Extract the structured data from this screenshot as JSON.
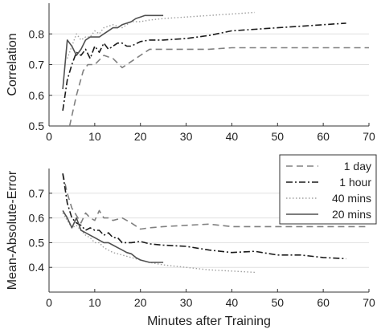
{
  "chart_data": [
    {
      "type": "line",
      "ylabel": "Correlation",
      "xlim": [
        0,
        70
      ],
      "ylim": [
        0.5,
        0.9
      ],
      "xticks": [
        0,
        10,
        20,
        30,
        40,
        50,
        60,
        70
      ],
      "yticks": [
        0.5,
        0.6,
        0.7,
        0.8
      ],
      "xtick_labels": [
        "0",
        "10",
        "20",
        "30",
        "40",
        "50",
        "60",
        "70"
      ],
      "ytick_labels": [
        "0.5",
        "0.6",
        "0.7",
        "0.8"
      ],
      "grid": "horizontal",
      "series": [
        {
          "name": "1 day",
          "style": "dashed",
          "color": "#808080",
          "x": [
            4.5,
            6,
            7.5,
            8.5,
            10,
            12,
            14,
            16,
            18,
            20,
            22,
            25,
            30,
            35,
            40,
            45,
            50,
            55,
            60,
            65,
            70
          ],
          "y": [
            0.5,
            0.6,
            0.68,
            0.7,
            0.7,
            0.73,
            0.72,
            0.69,
            0.71,
            0.73,
            0.75,
            0.75,
            0.75,
            0.75,
            0.755,
            0.755,
            0.755,
            0.755,
            0.755,
            0.755,
            0.755
          ]
        },
        {
          "name": "1 hour",
          "style": "dashdot",
          "color": "#1a1a1a",
          "x": [
            3,
            4,
            5,
            6,
            7,
            8,
            9,
            10,
            11,
            12,
            13,
            14,
            15,
            16,
            17,
            18,
            20,
            22,
            25,
            30,
            35,
            40,
            45,
            50,
            55,
            60,
            65
          ],
          "y": [
            0.55,
            0.65,
            0.7,
            0.74,
            0.73,
            0.75,
            0.72,
            0.76,
            0.74,
            0.77,
            0.75,
            0.76,
            0.77,
            0.77,
            0.76,
            0.76,
            0.775,
            0.78,
            0.78,
            0.785,
            0.795,
            0.81,
            0.815,
            0.82,
            0.825,
            0.83,
            0.835
          ]
        },
        {
          "name": "40 mins",
          "style": "dotted",
          "color": "#a0a0a0",
          "x": [
            4,
            5,
            6,
            7,
            8,
            9,
            10,
            11,
            12,
            14,
            16,
            18,
            20,
            22,
            25,
            30,
            35,
            40,
            45
          ],
          "y": [
            0.72,
            0.76,
            0.8,
            0.78,
            0.79,
            0.79,
            0.81,
            0.8,
            0.82,
            0.83,
            0.82,
            0.84,
            0.84,
            0.845,
            0.85,
            0.855,
            0.86,
            0.865,
            0.87
          ]
        },
        {
          "name": "20 mins",
          "style": "solid",
          "color": "#505050",
          "x": [
            3,
            4,
            5,
            6,
            7,
            8,
            9,
            10,
            11,
            12,
            13,
            14,
            15,
            16,
            17,
            18,
            19,
            20,
            21,
            22,
            23,
            24,
            25
          ],
          "y": [
            0.62,
            0.78,
            0.76,
            0.73,
            0.75,
            0.78,
            0.79,
            0.79,
            0.79,
            0.8,
            0.81,
            0.82,
            0.82,
            0.83,
            0.835,
            0.84,
            0.85,
            0.855,
            0.86,
            0.86,
            0.86,
            0.86,
            0.86
          ]
        }
      ]
    },
    {
      "type": "line",
      "xlabel": "Minutes after Training",
      "ylabel": "Mean-Absolute-Error",
      "xlim": [
        0,
        70
      ],
      "ylim": [
        0.3,
        0.8
      ],
      "xticks": [
        0,
        10,
        20,
        30,
        40,
        50,
        60,
        70
      ],
      "yticks": [
        0.4,
        0.5,
        0.6,
        0.7
      ],
      "xtick_labels": [
        "0",
        "10",
        "20",
        "30",
        "40",
        "50",
        "60",
        "70"
      ],
      "ytick_labels": [
        "0.4",
        "0.5",
        "0.6",
        "0.7"
      ],
      "grid": "horizontal",
      "legend_position": "top-right",
      "series": [
        {
          "name": "1 day",
          "style": "dashed",
          "color": "#808080",
          "x": [
            3,
            4,
            5,
            6,
            7,
            8,
            9,
            10,
            11,
            12,
            13,
            14,
            16,
            18,
            20,
            22,
            25,
            30,
            35,
            40,
            45,
            50,
            55,
            60,
            65,
            70
          ],
          "y": [
            0.78,
            0.7,
            0.64,
            0.61,
            0.58,
            0.62,
            0.6,
            0.59,
            0.63,
            0.6,
            0.6,
            0.59,
            0.6,
            0.58,
            0.555,
            0.56,
            0.565,
            0.57,
            0.575,
            0.565,
            0.565,
            0.565,
            0.565,
            0.565,
            0.565,
            0.565
          ]
        },
        {
          "name": "1 hour",
          "style": "dashdot",
          "color": "#1a1a1a",
          "x": [
            3,
            4,
            5,
            6,
            7,
            8,
            9,
            10,
            11,
            12,
            13,
            14,
            15,
            16,
            18,
            20,
            22,
            25,
            30,
            35,
            40,
            45,
            50,
            55,
            60,
            65
          ],
          "y": [
            0.78,
            0.66,
            0.6,
            0.58,
            0.57,
            0.55,
            0.56,
            0.55,
            0.55,
            0.53,
            0.54,
            0.52,
            0.52,
            0.5,
            0.5,
            0.505,
            0.495,
            0.49,
            0.485,
            0.47,
            0.46,
            0.465,
            0.45,
            0.45,
            0.44,
            0.435
          ]
        },
        {
          "name": "40 mins",
          "style": "dotted",
          "color": "#a0a0a0",
          "x": [
            3,
            4,
            5,
            6,
            7,
            8,
            9,
            10,
            11,
            12,
            14,
            16,
            18,
            20,
            22,
            25,
            30,
            35,
            40,
            45
          ],
          "y": [
            0.62,
            0.59,
            0.56,
            0.57,
            0.55,
            0.53,
            0.52,
            0.5,
            0.5,
            0.48,
            0.46,
            0.45,
            0.44,
            0.43,
            0.42,
            0.41,
            0.4,
            0.39,
            0.385,
            0.38
          ]
        },
        {
          "name": "20 mins",
          "style": "solid",
          "color": "#505050",
          "x": [
            3,
            4,
            5,
            6,
            7,
            8,
            9,
            10,
            11,
            12,
            13,
            14,
            15,
            16,
            17,
            18,
            19,
            20,
            21,
            22,
            23,
            24,
            25
          ],
          "y": [
            0.63,
            0.6,
            0.56,
            0.6,
            0.55,
            0.54,
            0.53,
            0.52,
            0.51,
            0.5,
            0.5,
            0.49,
            0.48,
            0.47,
            0.46,
            0.455,
            0.44,
            0.43,
            0.425,
            0.42,
            0.42,
            0.42,
            0.42
          ]
        }
      ]
    }
  ]
}
